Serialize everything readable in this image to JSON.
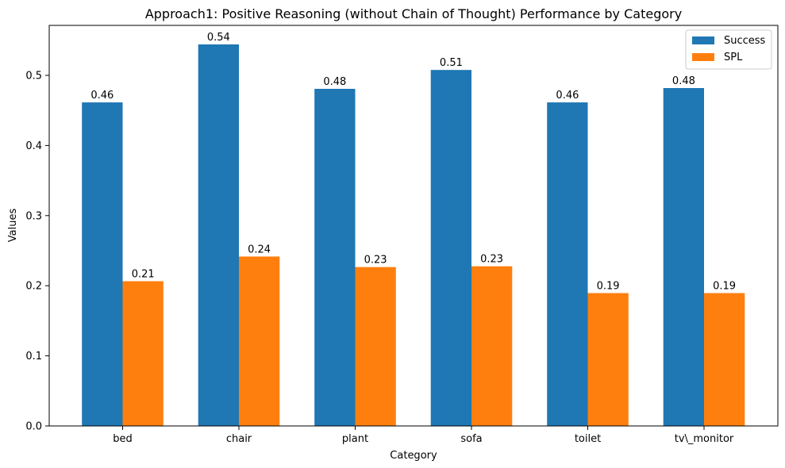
{
  "chart_data": {
    "type": "bar",
    "title": "Approach1: Positive Reasoning (without Chain of Thought) Performance by Category",
    "xlabel": "Category",
    "ylabel": "Values",
    "categories": [
      "bed",
      "chair",
      "plant",
      "sofa",
      "toilet",
      "tv\\_monitor"
    ],
    "series": [
      {
        "name": "Success",
        "color": "#1f77b4",
        "values": [
          0.4615,
          0.5441,
          0.4808,
          0.5077,
          0.4615,
          0.4819
        ],
        "labels": [
          "0.46",
          "0.54",
          "0.48",
          "0.51",
          "0.46",
          "0.48"
        ]
      },
      {
        "name": "SPL",
        "color": "#ff7f0e",
        "values": [
          0.2065,
          0.2416,
          0.2266,
          0.2277,
          0.1895,
          0.1895
        ],
        "labels": [
          "0.21",
          "0.24",
          "0.23",
          "0.23",
          "0.19",
          "0.19"
        ]
      }
    ],
    "ylim": [
      0,
      0.5713
    ],
    "yticks": [
      0.0,
      0.1,
      0.2,
      0.3,
      0.4,
      0.5
    ],
    "ytick_labels": [
      "0.0",
      "0.1",
      "0.2",
      "0.3",
      "0.4",
      "0.5"
    ],
    "grid": false,
    "legend_position": "top-right"
  }
}
